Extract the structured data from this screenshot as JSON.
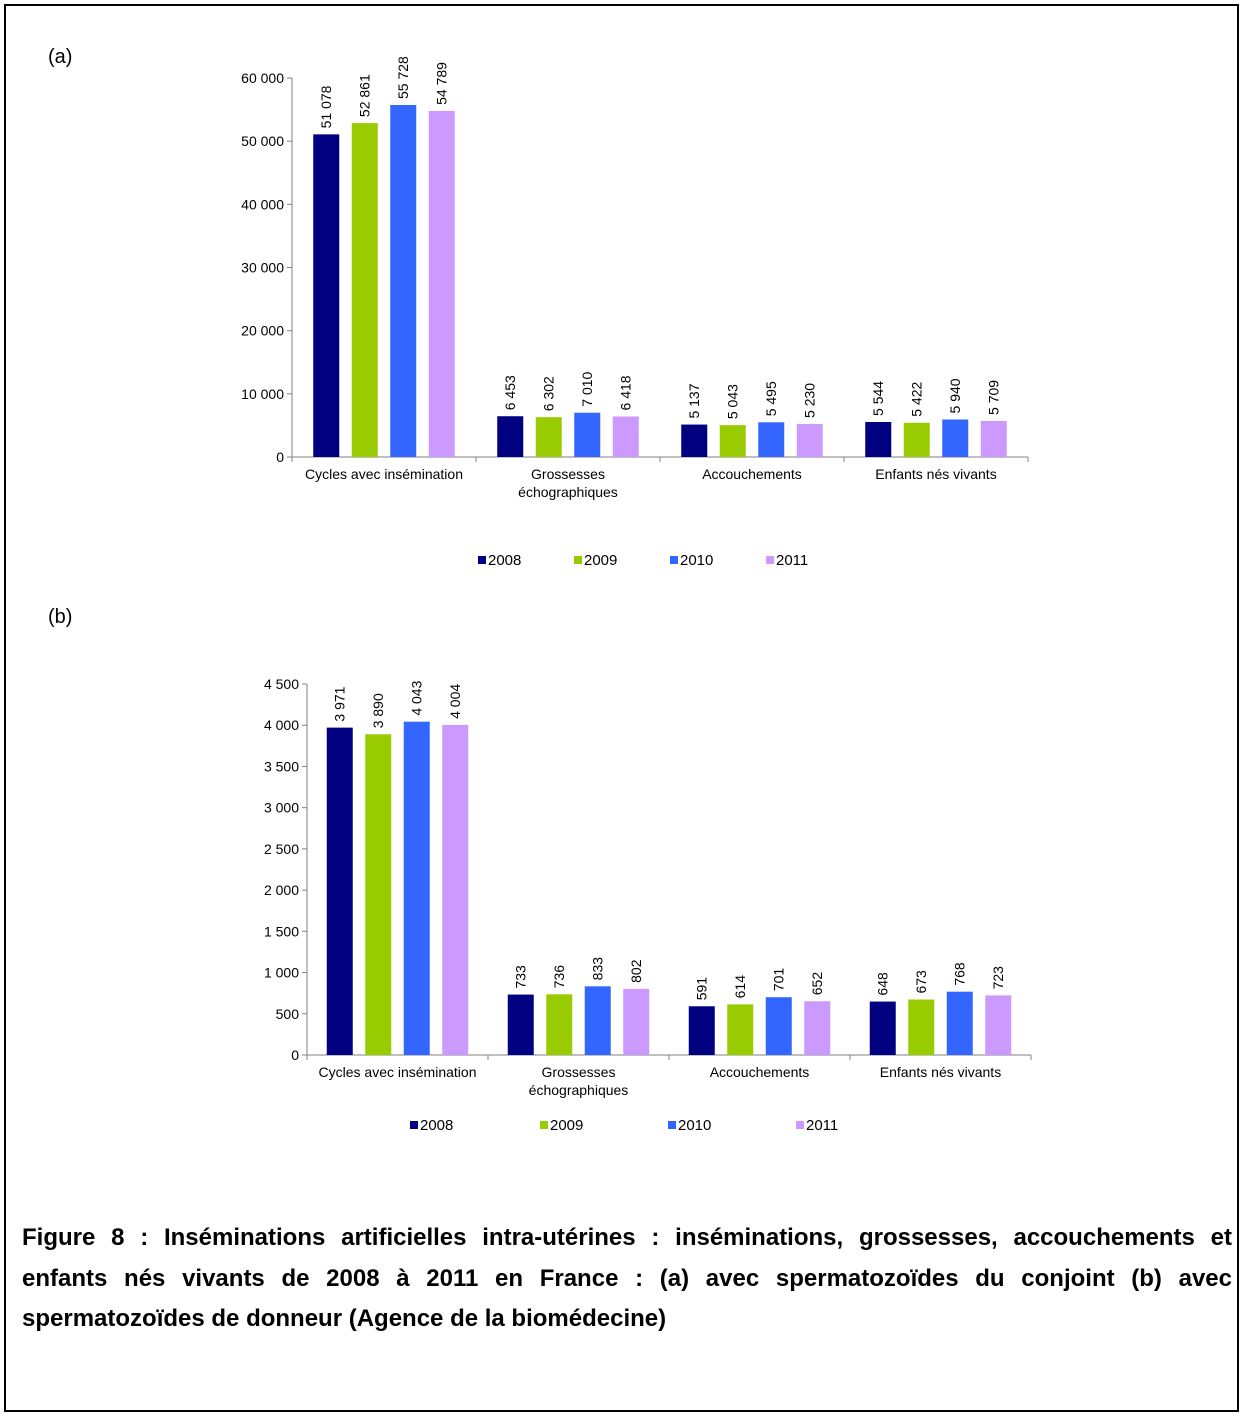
{
  "panels": [
    {
      "label": "(a)"
    },
    {
      "label": "(b)"
    }
  ],
  "caption": "Figure 8 : Inséminations artificielles intra-utérines : inséminations, grossesses, accouchements et enfants nés vivants de 2008 à 2011 en France : (a) avec spermatozoïdes du conjoint (b) avec spermatozoïdes de donneur (Agence de la biomédecine)",
  "colors": {
    "2008": "#000080",
    "2009": "#99cc00",
    "2010": "#3366ff",
    "2011": "#cc99ff"
  },
  "chart_data": [
    {
      "type": "bar",
      "categories": [
        [
          "Cycles avec insémination"
        ],
        [
          "Grossesses",
          "échographiques"
        ],
        [
          "Accouchements"
        ],
        [
          "Enfants nés vivants"
        ]
      ],
      "series": [
        {
          "name": "2008",
          "values": [
            51078,
            6453,
            5137,
            5544
          ],
          "labels": [
            "51 078",
            "6 453",
            "5 137",
            "5 544"
          ]
        },
        {
          "name": "2009",
          "values": [
            52861,
            6302,
            5043,
            5422
          ],
          "labels": [
            "52 861",
            "6 302",
            "5 043",
            "5 422"
          ]
        },
        {
          "name": "2010",
          "values": [
            55728,
            7010,
            5495,
            5940
          ],
          "labels": [
            "55 728",
            "7 010",
            "5 495",
            "5 940"
          ]
        },
        {
          "name": "2011",
          "values": [
            54789,
            6418,
            5230,
            5709
          ],
          "labels": [
            "54 789",
            "6 418",
            "5 230",
            "5 709"
          ]
        }
      ],
      "ylim": [
        0,
        60000
      ],
      "yticks": [
        0,
        10000,
        20000,
        30000,
        40000,
        50000,
        60000
      ],
      "ytick_labels": [
        "0",
        "10 000",
        "20 000",
        "30 000",
        "40 000",
        "50 000",
        "60 000"
      ],
      "grid": false,
      "legend": "bottom"
    },
    {
      "type": "bar",
      "categories": [
        [
          "Cycles avec insémination"
        ],
        [
          "Grossesses",
          "échographiques"
        ],
        [
          "Accouchements"
        ],
        [
          "Enfants nés vivants"
        ]
      ],
      "series": [
        {
          "name": "2008",
          "values": [
            3971,
            733,
            591,
            648
          ],
          "labels": [
            "3 971",
            "733",
            "591",
            "648"
          ]
        },
        {
          "name": "2009",
          "values": [
            3890,
            736,
            614,
            673
          ],
          "labels": [
            "3 890",
            "736",
            "614",
            "673"
          ]
        },
        {
          "name": "2010",
          "values": [
            4043,
            833,
            701,
            768
          ],
          "labels": [
            "4 043",
            "833",
            "701",
            "768"
          ]
        },
        {
          "name": "2011",
          "values": [
            4004,
            802,
            652,
            723
          ],
          "labels": [
            "4 004",
            "802",
            "652",
            "723"
          ]
        }
      ],
      "ylim": [
        0,
        4500
      ],
      "yticks": [
        0,
        500,
        1000,
        1500,
        2000,
        2500,
        3000,
        3500,
        4000,
        4500
      ],
      "ytick_labels": [
        "0",
        "500",
        "1 000",
        "1 500",
        "2 000",
        "2 500",
        "3 000",
        "3 500",
        "4 000",
        "4 500"
      ],
      "grid": false,
      "legend": "bottom"
    }
  ]
}
